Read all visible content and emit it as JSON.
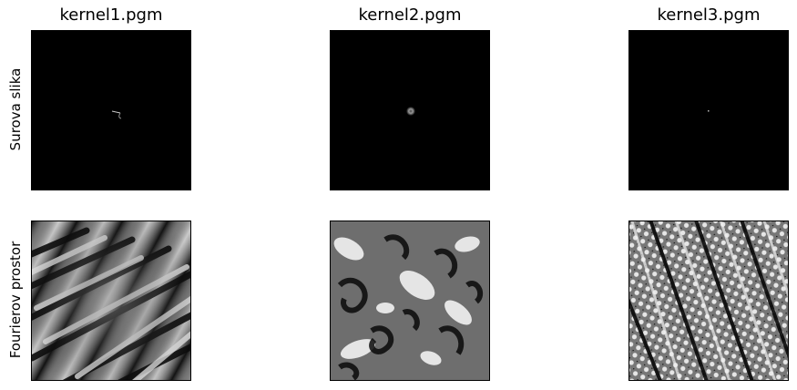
{
  "columns": [
    {
      "title": "kernel1.pgm"
    },
    {
      "title": "kernel2.pgm"
    },
    {
      "title": "kernel3.pgm"
    }
  ],
  "rows": [
    {
      "label": "Surova slika"
    },
    {
      "label": "Fourierov prostor"
    }
  ],
  "colors": {
    "background": "#000000",
    "frame": "#000000"
  }
}
